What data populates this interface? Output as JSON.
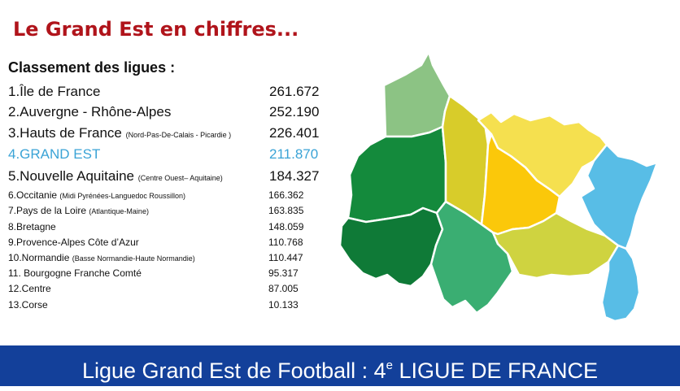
{
  "header": {
    "title": "Le Grand Est en chiffres...",
    "subtitle": "Classement des ligues :"
  },
  "ranking": [
    {
      "name": "1.Île de France",
      "note": "",
      "value": "261.672"
    },
    {
      "name": "2.Auvergne - Rhône-Alpes",
      "note": "",
      "value": "252.190"
    },
    {
      "name": "3.Hauts de France",
      "note": "(Nord-Pas-De-Calais - Picardie )",
      "value": "226.401"
    },
    {
      "name": "4.GRAND EST",
      "note": "",
      "value": "211.870"
    },
    {
      "name": "5.Nouvelle Aquitaine",
      "note": "(Centre Ouest– Aquitaine)",
      "value": "184.327"
    },
    {
      "name": "6.Occitanie",
      "note": "(Midi Pyrénées-Languedoc Roussillon)",
      "value": "166.362"
    },
    {
      "name": "7.Pays de la Loire",
      "note": "(Atlantique-Maine)",
      "value": "163.835"
    },
    {
      "name": "8.Bretagne",
      "note": "",
      "value": "148.059"
    },
    {
      "name": "9.Provence-Alpes Côte d’Azur",
      "note": "",
      "value": "110.768"
    },
    {
      "name": "10.Normandie",
      "note": "(Basse Normandie-Haute Normandie)",
      "value": "110.447"
    },
    {
      "name": "11. Bourgogne Franche Comté",
      "note": "",
      "value": "95.317"
    },
    {
      "name": "12.Centre",
      "note": "",
      "value": "87.005"
    },
    {
      "name": "13.Corse",
      "note": "",
      "value": "10.133"
    }
  ],
  "banner": {
    "text_before": "Ligue Grand Est de Football : 4",
    "superscript": "e",
    "text_after": " LIGUE DE FRANCE"
  },
  "colors": {
    "title": "#b0141b",
    "highlight": "#3aa3d6",
    "banner_bg": "#13409a",
    "banner_text": "#ffffff"
  },
  "map": {
    "region_colors": {
      "ardennes": "#8cc384",
      "marne": "#148a3c",
      "aube": "#0f7a37",
      "haute-marne": "#3aae72",
      "meuse": "#d8cc2a",
      "moselle": "#f5e04f",
      "meurthe-et-moselle": "#fbc80a",
      "vosges": "#cfd340",
      "bas-rhin": "#58bde6",
      "haut-rhin": "#58bde6"
    }
  }
}
